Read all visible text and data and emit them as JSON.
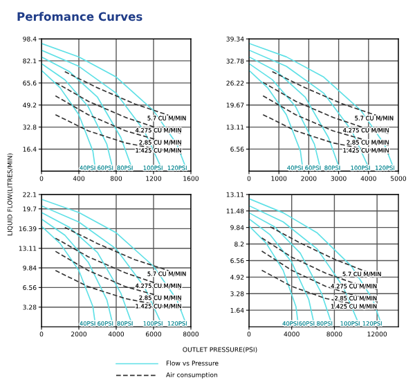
{
  "chart_data": [
    {
      "type": "line",
      "title": "Perfomance Curves",
      "xlabel": "OUTLET PRESSURE(PSI)",
      "ylabel": "LIQUID FLOW(LITRES/MIN)",
      "annotations": [
        "Flow vs Pressure",
        "Air consumption"
      ],
      "xlim": [
        0,
        1600
      ],
      "ylim": [
        0,
        98.4
      ],
      "xticks": [
        0,
        400,
        800,
        1200,
        1600
      ],
      "yticks": [
        16.4,
        32.8,
        49.2,
        65.6,
        82.1,
        98.4
      ],
      "grid": true,
      "legend": "bottom",
      "series": [
        {
          "name": "120PSI",
          "color": "#5ee0e6",
          "line_style": "solid",
          "x": [
            0,
            400,
            800,
            1200,
            1450,
            1560
          ],
          "values": [
            95,
            85,
            70,
            45,
            20,
            0
          ]
        },
        {
          "name": "100PSI",
          "color": "#5ee0e6",
          "line_style": "solid",
          "x": [
            0,
            400,
            800,
            1100,
            1300
          ],
          "values": [
            90,
            78,
            58,
            30,
            0
          ]
        },
        {
          "name": "80PSI",
          "color": "#5ee0e6",
          "line_style": "solid",
          "x": [
            0,
            300,
            600,
            850,
            980
          ],
          "values": [
            85,
            74,
            55,
            25,
            0
          ]
        },
        {
          "name": "60PSI",
          "color": "#5ee0e6",
          "line_style": "solid",
          "x": [
            0,
            250,
            500,
            700,
            770
          ],
          "values": [
            80,
            68,
            48,
            20,
            0
          ]
        },
        {
          "name": "40PSI",
          "color": "#5ee0e6",
          "line_style": "solid",
          "x": [
            0,
            200,
            400,
            550,
            580
          ],
          "values": [
            75,
            62,
            42,
            15,
            0
          ]
        },
        {
          "name": "5.7 CU M/MIN",
          "color": "#333333",
          "line_style": "dashed",
          "x": [
            250,
            600,
            1000,
            1300,
            1550
          ],
          "values": [
            74,
            62,
            50,
            43,
            37
          ]
        },
        {
          "name": "4.275 CU M/MIN",
          "color": "#333333",
          "line_style": "dashed",
          "x": [
            150,
            500,
            900,
            1200,
            1500
          ],
          "values": [
            66,
            52,
            40,
            33,
            28
          ]
        },
        {
          "name": "2.85 CU M/MIN",
          "color": "#333333",
          "line_style": "dashed",
          "x": [
            150,
            500,
            900,
            1200,
            1500
          ],
          "values": [
            56,
            42,
            30,
            24,
            19
          ]
        },
        {
          "name": "1.425 CU M/MIN",
          "color": "#333333",
          "line_style": "dashed",
          "x": [
            150,
            500,
            900,
            1200,
            1500
          ],
          "values": [
            42,
            30,
            21,
            17,
            13
          ]
        }
      ]
    },
    {
      "type": "line",
      "xlim": [
        0,
        5000
      ],
      "ylim": [
        0,
        39.34
      ],
      "xticks": [
        0,
        1000,
        2000,
        3000,
        4000,
        5000
      ],
      "yticks": [
        6.56,
        13.11,
        19.67,
        26.22,
        32.78,
        39.34
      ],
      "grid": true,
      "series": [
        {
          "name": "120PSI",
          "color": "#5ee0e6",
          "line_style": "solid",
          "x": [
            0,
            1250,
            2500,
            3750,
            4530,
            4880
          ],
          "values": [
            38,
            34,
            28,
            18,
            8,
            0
          ]
        },
        {
          "name": "100PSI",
          "color": "#5ee0e6",
          "line_style": "solid",
          "x": [
            0,
            1250,
            2500,
            3440,
            4060
          ],
          "values": [
            36,
            31.2,
            23.2,
            12,
            0
          ]
        },
        {
          "name": "80PSI",
          "color": "#5ee0e6",
          "line_style": "solid",
          "x": [
            0,
            940,
            1880,
            2660,
            3060
          ],
          "values": [
            34,
            29.6,
            22,
            10,
            0
          ]
        },
        {
          "name": "60PSI",
          "color": "#5ee0e6",
          "line_style": "solid",
          "x": [
            0,
            780,
            1560,
            2190,
            2410
          ],
          "values": [
            32,
            27.2,
            19.2,
            8,
            0
          ]
        },
        {
          "name": "40PSI",
          "color": "#5ee0e6",
          "line_style": "solid",
          "x": [
            0,
            625,
            1250,
            1720,
            1810
          ],
          "values": [
            30,
            24.8,
            16.8,
            6,
            0
          ]
        },
        {
          "name": "5.7 CU M/MIN",
          "color": "#333333",
          "line_style": "dashed",
          "x": [
            780,
            1880,
            3130,
            4060,
            4840
          ],
          "values": [
            29.6,
            24.8,
            20,
            17.2,
            14.8
          ]
        },
        {
          "name": "4.275 CU M/MIN",
          "color": "#333333",
          "line_style": "dashed",
          "x": [
            470,
            1560,
            2810,
            3750,
            4690
          ],
          "values": [
            26.4,
            20.8,
            16,
            13.2,
            11.2
          ]
        },
        {
          "name": "2.85 CU M/MIN",
          "color": "#333333",
          "line_style": "dashed",
          "x": [
            470,
            1560,
            2810,
            3750,
            4690
          ],
          "values": [
            22.4,
            16.8,
            12,
            9.6,
            7.6
          ]
        },
        {
          "name": "1.425 CU M/MIN",
          "color": "#333333",
          "line_style": "dashed",
          "x": [
            470,
            1560,
            2810,
            3750,
            4690
          ],
          "values": [
            16.8,
            12,
            8.4,
            6.8,
            5.2
          ]
        }
      ]
    },
    {
      "type": "line",
      "xlim": [
        0,
        8000
      ],
      "ylim": [
        0,
        22.1
      ],
      "xticks": [
        0,
        2000,
        4000,
        6000,
        8000
      ],
      "yticks": [
        3.28,
        6.56,
        9.84,
        13.11,
        16.39,
        19.7,
        22.1
      ],
      "grid": true,
      "series": [
        {
          "name": "120PSI",
          "color": "#5ee0e6",
          "line_style": "solid",
          "x": [
            0,
            2000,
            4000,
            6000,
            7250,
            7800
          ],
          "values": [
            21.3,
            19.1,
            15.7,
            10.1,
            4.5,
            0
          ]
        },
        {
          "name": "100PSI",
          "color": "#5ee0e6",
          "line_style": "solid",
          "x": [
            0,
            2000,
            4000,
            5500,
            6500
          ],
          "values": [
            20.2,
            17.5,
            13,
            6.7,
            0
          ]
        },
        {
          "name": "80PSI",
          "color": "#5ee0e6",
          "line_style": "solid",
          "x": [
            0,
            1500,
            3000,
            4250,
            4900
          ],
          "values": [
            19.1,
            16.6,
            12.4,
            5.6,
            0
          ]
        },
        {
          "name": "60PSI",
          "color": "#5ee0e6",
          "line_style": "solid",
          "x": [
            0,
            1250,
            2500,
            3500,
            3850
          ],
          "values": [
            18,
            15.3,
            10.8,
            4.5,
            0
          ]
        },
        {
          "name": "40PSI",
          "color": "#5ee0e6",
          "line_style": "solid",
          "x": [
            0,
            1000,
            2000,
            2750,
            2900
          ],
          "values": [
            16.8,
            13.9,
            9.4,
            3.4,
            0
          ]
        },
        {
          "name": "5.7 CU M/MIN",
          "color": "#333333",
          "line_style": "dashed",
          "x": [
            1250,
            3000,
            5000,
            6500,
            7750
          ],
          "values": [
            16.6,
            13.9,
            11.2,
            9.7,
            8.3
          ]
        },
        {
          "name": "4.275 CU M/MIN",
          "color": "#333333",
          "line_style": "dashed",
          "x": [
            750,
            2500,
            4500,
            6000,
            7500
          ],
          "values": [
            14.8,
            11.7,
            9,
            7.4,
            6.3
          ]
        },
        {
          "name": "2.85 CU M/MIN",
          "color": "#333333",
          "line_style": "dashed",
          "x": [
            750,
            2500,
            4500,
            6000,
            7500
          ],
          "values": [
            12.6,
            9.4,
            6.7,
            5.4,
            4.3
          ]
        },
        {
          "name": "1.425 CU M/MIN",
          "color": "#333333",
          "line_style": "dashed",
          "x": [
            750,
            2500,
            4500,
            6000,
            7500
          ],
          "values": [
            9.4,
            6.7,
            4.7,
            3.8,
            2.9
          ]
        }
      ]
    },
    {
      "type": "line",
      "xlim": [
        0,
        14000
      ],
      "ylim": [
        0,
        13.11
      ],
      "xticks": [
        0,
        4000,
        8000,
        12000
      ],
      "yticks": [
        1.64,
        3.28,
        4.92,
        6.56,
        8.2,
        9.84,
        11.48,
        13.11
      ],
      "grid": true,
      "series": [
        {
          "name": "120PSI",
          "color": "#5ee0e6",
          "line_style": "solid",
          "x": [
            0,
            3200,
            6400,
            9600,
            11600,
            12480
          ],
          "values": [
            12.7,
            11.3,
            9.3,
            6,
            2.7,
            0
          ]
        },
        {
          "name": "100PSI",
          "color": "#5ee0e6",
          "line_style": "solid",
          "x": [
            0,
            3200,
            6400,
            8800,
            10400
          ],
          "values": [
            12,
            10.4,
            7.7,
            4,
            0
          ]
        },
        {
          "name": "80PSI",
          "color": "#5ee0e6",
          "line_style": "solid",
          "x": [
            0,
            2400,
            4800,
            6800,
            7840
          ],
          "values": [
            11.3,
            9.9,
            7.3,
            3.3,
            0
          ]
        },
        {
          "name": "60PSI",
          "color": "#5ee0e6",
          "line_style": "solid",
          "x": [
            0,
            2000,
            4000,
            5600,
            6160
          ],
          "values": [
            10.7,
            9.1,
            6.4,
            2.7,
            0
          ]
        },
        {
          "name": "40PSI",
          "color": "#5ee0e6",
          "line_style": "solid",
          "x": [
            0,
            1600,
            3200,
            4400,
            4640
          ],
          "values": [
            10,
            8.3,
            5.6,
            2,
            0
          ]
        },
        {
          "name": "5.7 CU M/MIN",
          "color": "#333333",
          "line_style": "dashed",
          "x": [
            2000,
            4800,
            8000,
            10400,
            12400
          ],
          "values": [
            9.9,
            8.3,
            6.7,
            5.7,
            4.9
          ]
        },
        {
          "name": "4.275 CU M/MIN",
          "color": "#333333",
          "line_style": "dashed",
          "x": [
            1200,
            4000,
            7200,
            9600,
            12000
          ],
          "values": [
            8.8,
            6.9,
            5.3,
            4.4,
            3.7
          ]
        },
        {
          "name": "2.85 CU M/MIN",
          "color": "#333333",
          "line_style": "dashed",
          "x": [
            1200,
            4000,
            7200,
            9600,
            12000
          ],
          "values": [
            7.5,
            5.6,
            4,
            3.2,
            2.5
          ]
        },
        {
          "name": "1.425 CU M/MIN",
          "color": "#333333",
          "line_style": "dashed",
          "x": [
            1200,
            4000,
            7200,
            9600,
            12000
          ],
          "values": [
            5.6,
            4,
            2.8,
            2.3,
            1.7
          ]
        }
      ]
    }
  ]
}
